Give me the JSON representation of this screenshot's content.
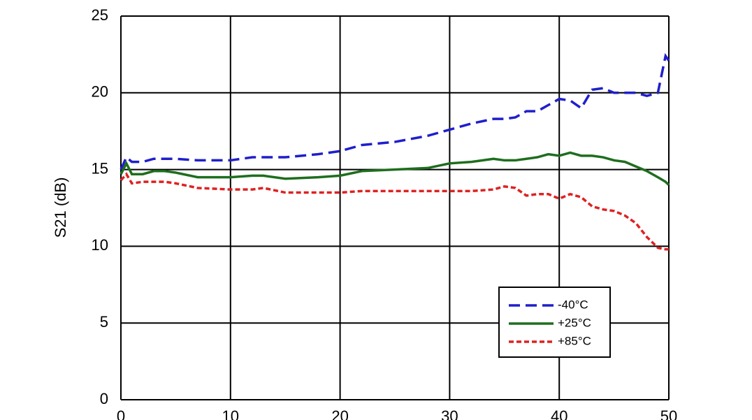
{
  "chart_data": {
    "type": "line",
    "y_label": "S21 (dB)",
    "x": [
      0,
      0.5,
      1,
      2,
      3,
      4,
      5,
      7,
      10,
      12,
      13,
      15,
      18,
      20,
      22,
      25,
      28,
      30,
      32,
      34,
      35,
      36,
      37,
      38,
      39,
      40,
      41,
      42,
      43,
      44,
      45,
      46,
      47,
      48,
      49,
      49.7,
      50
    ],
    "series": [
      {
        "name": "-40°C",
        "color": "#1f1fcc",
        "dash": "dashed",
        "values": [
          15.0,
          15.8,
          15.5,
          15.5,
          15.7,
          15.7,
          15.7,
          15.6,
          15.6,
          15.8,
          15.8,
          15.8,
          16.0,
          16.2,
          16.6,
          16.8,
          17.2,
          17.6,
          18.0,
          18.3,
          18.3,
          18.4,
          18.8,
          18.8,
          19.2,
          19.6,
          19.5,
          19.0,
          20.2,
          20.3,
          20.0,
          20.0,
          20.0,
          19.8,
          20.0,
          22.4,
          22.1
        ]
      },
      {
        "name": "+25°C",
        "color": "#1e6e1e",
        "dash": "solid",
        "values": [
          14.7,
          15.4,
          14.7,
          14.7,
          14.9,
          14.9,
          14.8,
          14.5,
          14.5,
          14.6,
          14.6,
          14.4,
          14.5,
          14.6,
          14.9,
          15.0,
          15.1,
          15.4,
          15.5,
          15.7,
          15.6,
          15.6,
          15.7,
          15.8,
          16.0,
          15.9,
          16.1,
          15.9,
          15.9,
          15.8,
          15.6,
          15.5,
          15.2,
          14.9,
          14.5,
          14.2,
          14.0
        ]
      },
      {
        "name": "+85°C",
        "color": "#dd2222",
        "dash": "dotted",
        "values": [
          14.3,
          14.7,
          14.1,
          14.2,
          14.2,
          14.2,
          14.1,
          13.8,
          13.7,
          13.7,
          13.8,
          13.5,
          13.5,
          13.5,
          13.6,
          13.6,
          13.6,
          13.6,
          13.6,
          13.7,
          13.9,
          13.8,
          13.3,
          13.4,
          13.4,
          13.1,
          13.4,
          13.2,
          12.6,
          12.4,
          12.3,
          12.0,
          11.5,
          10.6,
          9.9,
          9.8,
          9.8
        ]
      }
    ],
    "xlim": [
      0,
      50
    ],
    "xticks": [
      0,
      10,
      20,
      30,
      40,
      50
    ],
    "ylim": [
      0,
      25
    ],
    "yticks": [
      0,
      5,
      10,
      15,
      20,
      25
    ],
    "grid": true,
    "legend": "lower right"
  }
}
